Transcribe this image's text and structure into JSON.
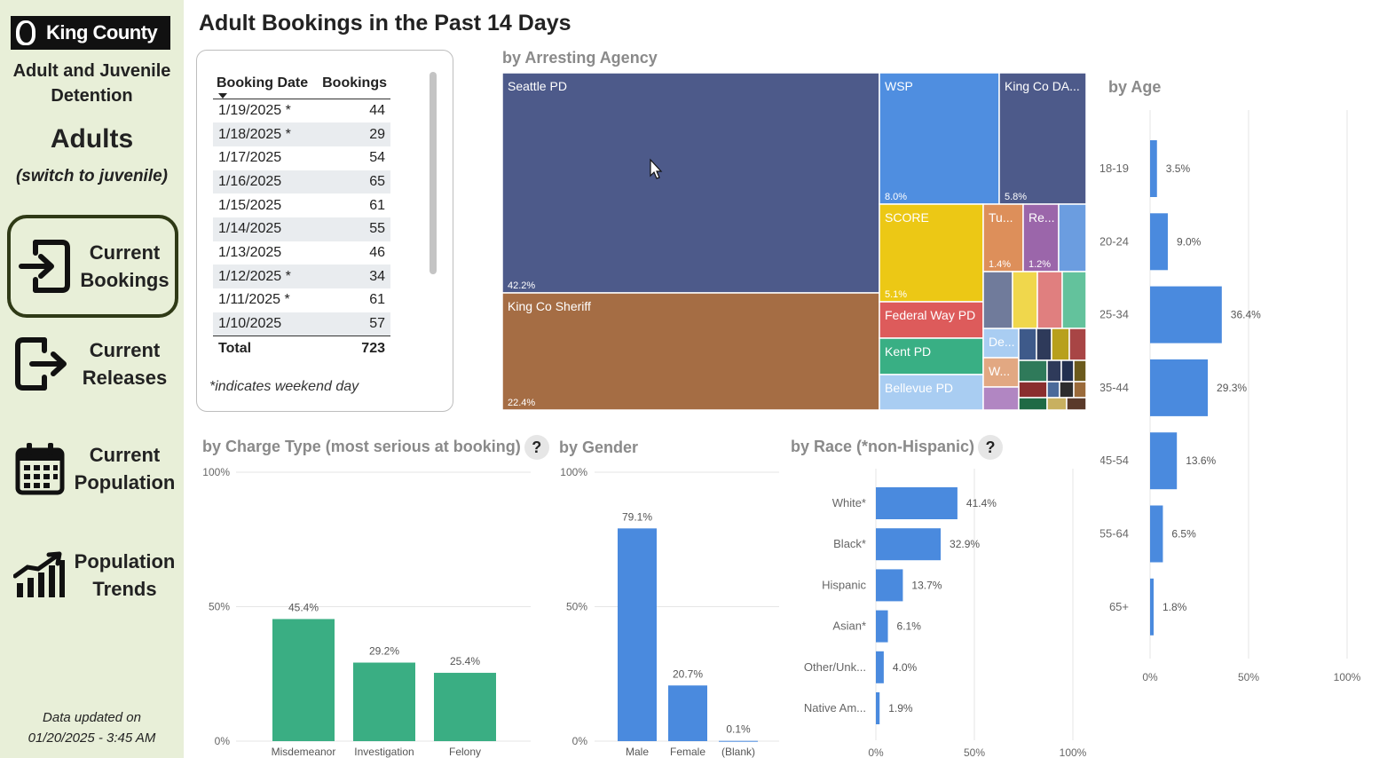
{
  "sidebar": {
    "logo_text": "King County",
    "dept_line1": "Adult and Juvenile",
    "dept_line2": "Detention",
    "mode": "Adults",
    "switch_link": "(switch to juvenile)",
    "nav": [
      {
        "line1": "Current",
        "line2": "Bookings",
        "icon": "login-icon",
        "active": true
      },
      {
        "line1": "Current",
        "line2": "Releases",
        "icon": "logout-icon",
        "active": false
      },
      {
        "line1": "Current",
        "line2": "Population",
        "icon": "calendar-icon",
        "active": false
      },
      {
        "line1": "Population",
        "line2": "Trends",
        "icon": "trend-chart-icon",
        "active": false
      }
    ],
    "updated_line1": "Data updated on",
    "updated_line2": "01/20/2025 - 3:45 AM"
  },
  "page_title": "Adult Bookings in the Past 14 Days",
  "bookings_table": {
    "col_date": "Booking Date",
    "col_count": "Bookings",
    "rows": [
      {
        "date": "1/19/2025 *",
        "count": "44"
      },
      {
        "date": "1/18/2025 *",
        "count": "29"
      },
      {
        "date": "1/17/2025",
        "count": "54"
      },
      {
        "date": "1/16/2025",
        "count": "65"
      },
      {
        "date": "1/15/2025",
        "count": "61"
      },
      {
        "date": "1/14/2025",
        "count": "55"
      },
      {
        "date": "1/13/2025",
        "count": "46"
      },
      {
        "date": "1/12/2025 *",
        "count": "34"
      },
      {
        "date": "1/11/2025 *",
        "count": "61"
      },
      {
        "date": "1/10/2025",
        "count": "57"
      }
    ],
    "total_label": "Total",
    "total_value": "723",
    "footnote": "*indicates weekend day"
  },
  "chart_data": [
    {
      "type": "treemap",
      "title": "by Arresting Agency",
      "colors": {
        "seattle": "#4d5a8a",
        "sheriff": "#a56d44",
        "wsp": "#4f8ee0",
        "kingda": "#4d5a8a",
        "score": "#ecc815",
        "federal": "#dd5b5b",
        "kent": "#39af84",
        "bellevue": "#a9cdf2",
        "tu": "#dd8f5a",
        "re": "#9b66aa",
        "de": "#a9cdf2",
        "w": "#e2a882"
      },
      "items": [
        {
          "name": "Seattle PD",
          "percent_label": "42.2%"
        },
        {
          "name": "King Co Sheriff",
          "percent_label": "22.4%"
        },
        {
          "name": "WSP",
          "percent_label": "8.0%"
        },
        {
          "name": "King Co DA...",
          "percent_label": "5.8%"
        },
        {
          "name": "SCORE",
          "percent_label": "5.1%"
        },
        {
          "name": "Tu...",
          "percent_label": "1.4%"
        },
        {
          "name": "Re...",
          "percent_label": "1.2%"
        },
        {
          "name": "Federal Way PD",
          "percent_label": ""
        },
        {
          "name": "Kent PD",
          "percent_label": ""
        },
        {
          "name": "Bellevue PD",
          "percent_label": ""
        },
        {
          "name": "De...",
          "percent_label": ""
        },
        {
          "name": "W...",
          "percent_label": ""
        }
      ]
    },
    {
      "type": "bar",
      "orientation": "horizontal",
      "title": "by Age",
      "categories": [
        "18-19",
        "20-24",
        "25-34",
        "35-44",
        "45-54",
        "55-64",
        "65+"
      ],
      "values": [
        3.5,
        9.0,
        36.4,
        29.3,
        13.6,
        6.5,
        1.8
      ],
      "value_labels": [
        "3.5%",
        "9.0%",
        "36.4%",
        "29.3%",
        "13.6%",
        "6.5%",
        "1.8%"
      ],
      "xlim": [
        0,
        100
      ],
      "ticks": [
        "0%",
        "50%",
        "100%"
      ],
      "color": "#4a8ade"
    },
    {
      "type": "bar",
      "orientation": "vertical",
      "title": "by Charge Type (most serious at booking)",
      "categories": [
        "Misdemeanor",
        "Investigation",
        "Felony"
      ],
      "values": [
        45.4,
        29.2,
        25.4
      ],
      "value_labels": [
        "45.4%",
        "29.2%",
        "25.4%"
      ],
      "ylim": [
        0,
        100
      ],
      "ticks": [
        "0%",
        "50%",
        "100%"
      ],
      "color": "#3aae83"
    },
    {
      "type": "bar",
      "orientation": "vertical",
      "title": "by Gender",
      "categories": [
        "Male",
        "Female",
        "(Blank)"
      ],
      "values": [
        79.1,
        20.7,
        0.1
      ],
      "value_labels": [
        "79.1%",
        "20.7%",
        "0.1%"
      ],
      "ylim": [
        0,
        100
      ],
      "ticks": [
        "0%",
        "50%",
        "100%"
      ],
      "color": "#4a8ade"
    },
    {
      "type": "bar",
      "orientation": "horizontal",
      "title": "by Race (*non-Hispanic)",
      "categories": [
        "White*",
        "Black*",
        "Hispanic",
        "Asian*",
        "Other/Unk...",
        "Native Am..."
      ],
      "values": [
        41.4,
        32.9,
        13.7,
        6.1,
        4.0,
        1.9
      ],
      "value_labels": [
        "41.4%",
        "32.9%",
        "13.7%",
        "6.1%",
        "4.0%",
        "1.9%"
      ],
      "xlim": [
        0,
        100
      ],
      "ticks": [
        "0%",
        "50%",
        "100%"
      ],
      "color": "#4a8ade"
    }
  ],
  "help_glyph": "?"
}
